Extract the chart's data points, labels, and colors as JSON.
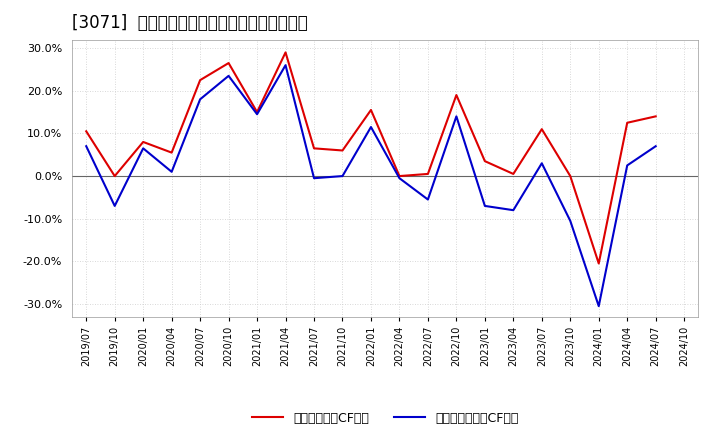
{
  "title": "[3071]  流動負債キャッシュフロー比率の推移",
  "x_labels": [
    "2019/07",
    "2019/10",
    "2020/01",
    "2020/04",
    "2020/07",
    "2020/10",
    "2021/01",
    "2021/04",
    "2021/07",
    "2021/10",
    "2022/01",
    "2022/04",
    "2022/07",
    "2022/10",
    "2023/01",
    "2023/04",
    "2023/07",
    "2023/10",
    "2024/01",
    "2024/04",
    "2024/07",
    "2024/10"
  ],
  "operating_cf": [
    10.5,
    0.0,
    8.0,
    5.5,
    22.5,
    26.5,
    15.0,
    29.0,
    6.5,
    6.0,
    15.5,
    0.0,
    0.5,
    19.0,
    3.5,
    0.5,
    11.0,
    0.0,
    -20.5,
    12.5,
    14.0,
    null
  ],
  "free_cf": [
    7.0,
    -7.0,
    6.5,
    1.0,
    18.0,
    23.5,
    14.5,
    26.0,
    -0.5,
    0.0,
    11.5,
    -0.5,
    -5.5,
    14.0,
    -7.0,
    -8.0,
    3.0,
    -10.5,
    -30.5,
    2.5,
    7.0,
    null
  ],
  "operating_color": "#dd0000",
  "free_color": "#0000cc",
  "ylim": [
    -33,
    32
  ],
  "yticks": [
    -30.0,
    -20.0,
    -10.0,
    0.0,
    10.0,
    20.0,
    30.0
  ],
  "legend_op": "流動負債営業CF比率",
  "legend_free": "流動負債フリーCF比率",
  "bg_color": "#ffffff",
  "plot_bg_color": "#ffffff",
  "grid_color": "#cccccc",
  "title_fontsize": 12
}
